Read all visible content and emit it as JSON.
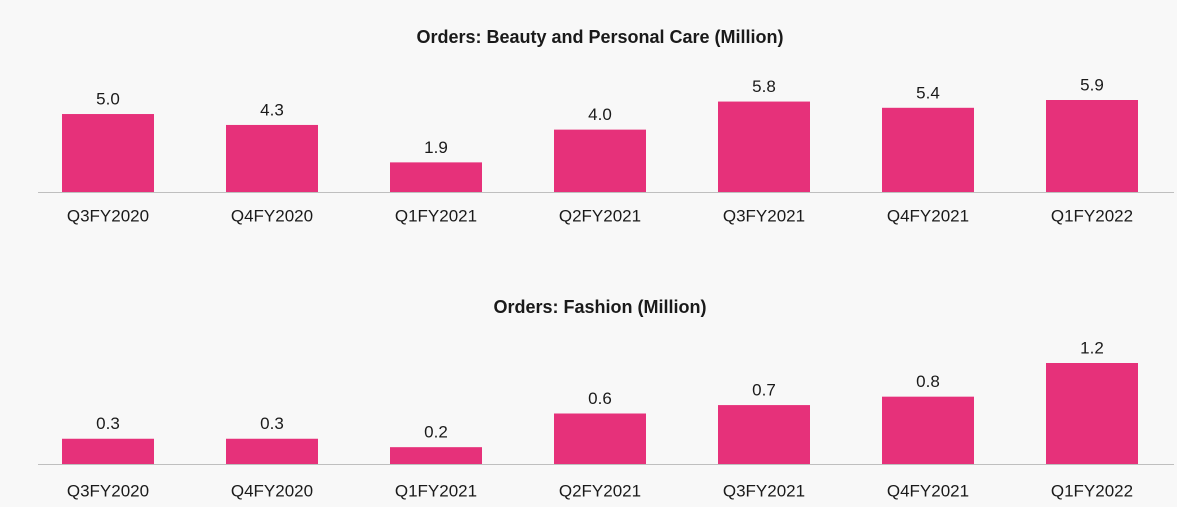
{
  "chart_data": [
    {
      "type": "bar",
      "title": "Orders: Beauty and Personal Care (Million)",
      "categories": [
        "Q3FY2020",
        "Q4FY2020",
        "Q1FY2021",
        "Q2FY2021",
        "Q3FY2021",
        "Q4FY2021",
        "Q1FY2022"
      ],
      "values": [
        5,
        4.3,
        1.9,
        4,
        5.8,
        5.4,
        5.9
      ],
      "value_labels": [
        "5.0",
        "4.3",
        "1.9",
        "4.0",
        "5.8",
        "5.4",
        "5.9"
      ],
      "color": "#e6317a"
    },
    {
      "type": "bar",
      "title": "Orders: Fashion (Million)",
      "categories": [
        "Q3FY2020",
        "Q4FY2020",
        "Q1FY2021",
        "Q2FY2021",
        "Q3FY2021",
        "Q4FY2021",
        "Q1FY2022"
      ],
      "values": [
        0.3,
        0.3,
        0.2,
        0.6,
        0.7,
        0.8,
        1.2
      ],
      "color": "#e6317a"
    }
  ]
}
